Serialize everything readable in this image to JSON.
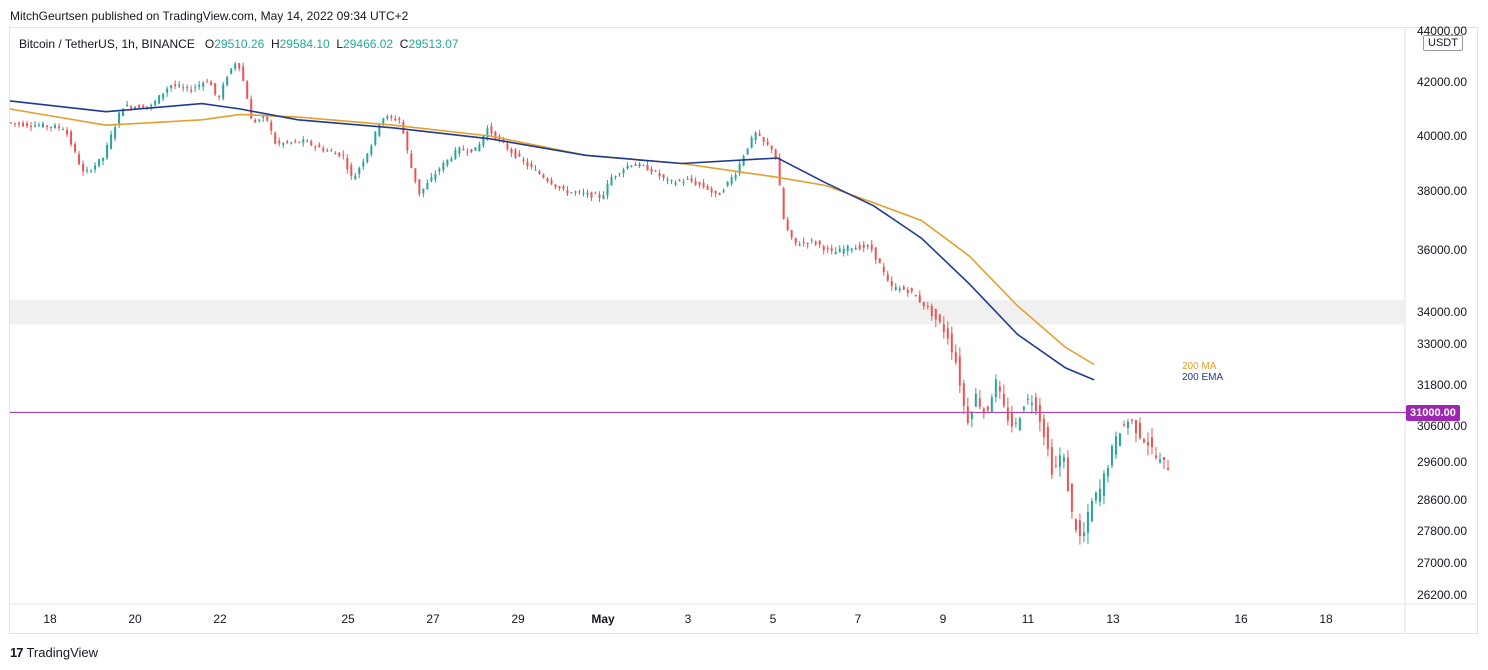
{
  "attribution": "MitchGeurtsen published on TradingView.com, May 14, 2022 09:34 UTC+2",
  "legend": {
    "symbol": "Bitcoin / TetherUS, 1h, BINANCE",
    "o_label": "O",
    "o_value": "29510.26",
    "h_label": "H",
    "h_value": "29584.10",
    "l_label": "L",
    "l_value": "29466.02",
    "c_label": "C",
    "c_value": "29513.07"
  },
  "unit": "USDT",
  "price_tag": "31000.00",
  "ma_label": "200 MA",
  "ema_label": "200 EMA",
  "footer": {
    "logo": "17",
    "brand": "TradingView"
  },
  "colors": {
    "up": "#26a69a",
    "down": "#ef5350",
    "ma": "#e59f2e",
    "ema": "#1f3a93",
    "hline": "#9c27b0",
    "band": "#f0f0f0"
  },
  "chart_data": {
    "type": "candlestick",
    "x_tick_labels": [
      "18",
      "20",
      "22",
      "25",
      "27",
      "29",
      "May",
      "3",
      "5",
      "7",
      "9",
      "11",
      "13",
      "16",
      "18"
    ],
    "y_tick_labels": [
      "44000.00",
      "42000.00",
      "40000.00",
      "38000.00",
      "36000.00",
      "34000.00",
      "33000.00",
      "31800.00",
      "30600.00",
      "29600.00",
      "28600.00",
      "27800.00",
      "27000.00",
      "26200.00"
    ],
    "horizontal_line": 31000,
    "zone": [
      33800,
      34200
    ],
    "price_path": [
      [
        0,
        40500
      ],
      [
        6,
        40300
      ],
      [
        8,
        38600
      ],
      [
        10,
        39200
      ],
      [
        12,
        41100
      ],
      [
        15,
        41100
      ],
      [
        17,
        41900
      ],
      [
        19,
        41700
      ],
      [
        21,
        42100
      ],
      [
        22,
        41300
      ],
      [
        23,
        42300
      ],
      [
        24,
        42900
      ],
      [
        25,
        41500
      ],
      [
        25.5,
        40500
      ],
      [
        27,
        40700
      ],
      [
        28,
        39700
      ],
      [
        31,
        39800
      ],
      [
        33,
        39500
      ],
      [
        35,
        39300
      ],
      [
        36,
        38400
      ],
      [
        38,
        39700
      ],
      [
        39,
        40700
      ],
      [
        41,
        40600
      ],
      [
        42,
        39000
      ],
      [
        43,
        37900
      ],
      [
        45,
        38800
      ],
      [
        47,
        39500
      ],
      [
        49,
        39500
      ],
      [
        50,
        40300
      ],
      [
        52,
        39600
      ],
      [
        54,
        39000
      ],
      [
        56,
        38500
      ],
      [
        58,
        38000
      ],
      [
        60,
        37900
      ],
      [
        62,
        37800
      ],
      [
        63,
        38500
      ],
      [
        65,
        39000
      ],
      [
        67,
        38800
      ],
      [
        69,
        38300
      ],
      [
        71,
        38400
      ],
      [
        73,
        38100
      ],
      [
        74,
        37800
      ],
      [
        76,
        38700
      ],
      [
        77,
        39500
      ],
      [
        78,
        40100
      ],
      [
        79,
        39700
      ],
      [
        80,
        39500
      ],
      [
        81,
        36900
      ],
      [
        82,
        36200
      ],
      [
        84,
        36300
      ],
      [
        86,
        35900
      ],
      [
        88,
        36100
      ],
      [
        90,
        36100
      ],
      [
        91,
        35500
      ],
      [
        92,
        34800
      ],
      [
        94,
        34700
      ],
      [
        96,
        34100
      ],
      [
        98,
        33300
      ],
      [
        99,
        32400
      ],
      [
        100,
        30700
      ],
      [
        101,
        31500
      ],
      [
        102,
        30900
      ],
      [
        103,
        31900
      ],
      [
        104,
        31000
      ],
      [
        105,
        30500
      ],
      [
        106,
        31300
      ],
      [
        107,
        31400
      ],
      [
        108,
        30500
      ],
      [
        109,
        29300
      ],
      [
        110,
        29900
      ],
      [
        111,
        28200
      ],
      [
        112,
        27500
      ],
      [
        113,
        28500
      ],
      [
        114,
        28900
      ],
      [
        115,
        29800
      ],
      [
        116,
        30500
      ],
      [
        117,
        30800
      ],
      [
        118,
        30400
      ],
      [
        119,
        30100
      ],
      [
        120,
        29600
      ],
      [
        121,
        29500
      ]
    ],
    "ma_200": [
      [
        0,
        41000
      ],
      [
        10,
        40400
      ],
      [
        20,
        40600
      ],
      [
        24,
        40800
      ],
      [
        30,
        40700
      ],
      [
        40,
        40400
      ],
      [
        50,
        40000
      ],
      [
        60,
        39300
      ],
      [
        70,
        39000
      ],
      [
        76,
        38700
      ],
      [
        80,
        38500
      ],
      [
        85,
        38200
      ],
      [
        90,
        37600
      ],
      [
        95,
        37000
      ],
      [
        100,
        35800
      ],
      [
        105,
        34200
      ],
      [
        110,
        32900
      ],
      [
        113,
        32400
      ]
    ],
    "ema_200": [
      [
        0,
        41300
      ],
      [
        10,
        40900
      ],
      [
        20,
        41200
      ],
      [
        24,
        41000
      ],
      [
        30,
        40600
      ],
      [
        40,
        40300
      ],
      [
        50,
        39900
      ],
      [
        60,
        39300
      ],
      [
        70,
        39000
      ],
      [
        80,
        39200
      ],
      [
        85,
        38300
      ],
      [
        90,
        37500
      ],
      [
        95,
        36400
      ],
      [
        100,
        34900
      ],
      [
        105,
        33300
      ],
      [
        110,
        32300
      ],
      [
        113,
        31950
      ]
    ]
  }
}
